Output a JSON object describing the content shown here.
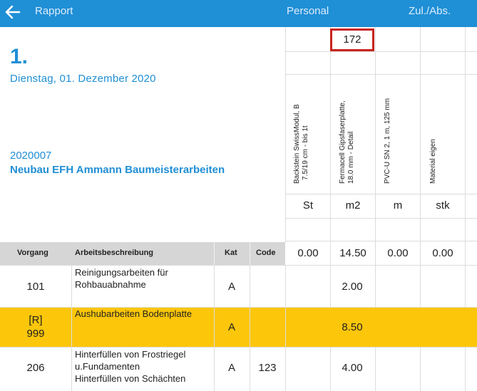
{
  "topbar": {
    "back_icon": "arrow-left-icon",
    "rapport": "Rapport",
    "personal": "Personal",
    "zul_abs": "Zul./Abs."
  },
  "header": {
    "day": "1.",
    "date": "Dienstag, 01. Dezember 2020",
    "project_number": "2020007",
    "project_name": "Neubau EFH Ammann Baumeisterarbeiten"
  },
  "materials": [
    {
      "name_line1": "Backstein SwissModul, B",
      "name_line2": "7.5/19 cm - bis 1t",
      "unit": "St",
      "total": "0.00",
      "top_value": ""
    },
    {
      "name_line1": "Fermacell Gipsfaserplatte,",
      "name_line2": "18.0 mm - Detail",
      "unit": "m2",
      "total": "14.50",
      "top_value": "172"
    },
    {
      "name_line1": "PVC-U SN 2, 1 m, 125 mm",
      "name_line2": "",
      "unit": "m",
      "total": "0.00",
      "top_value": ""
    },
    {
      "name_line1": "Material eigen",
      "name_line2": "",
      "unit": "stk",
      "total": "0.00",
      "top_value": ""
    }
  ],
  "table_header": {
    "vorgang": "Vorgang",
    "arbeitsbeschreibung": "Arbeitsbeschreibung",
    "kat": "Kat",
    "code": "Code"
  },
  "rows": [
    {
      "vorgang_line1": "",
      "vorgang_line2": "101",
      "description": "Reinigungsarbeiten für\nRohbauabnahme",
      "kat": "A",
      "code": "",
      "value": "2.00",
      "highlighted": false
    },
    {
      "vorgang_line1": "[R]",
      "vorgang_line2": "999",
      "description": "Aushubarbeiten Bodenplatte",
      "kat": "A",
      "code": "",
      "value": "8.50",
      "highlighted": true
    },
    {
      "vorgang_line1": "",
      "vorgang_line2": "206",
      "description": "Hinterfüllen von Frostriegel\nu.Fundamenten\nHinterfüllen von Schächten",
      "kat": "A",
      "code": "123",
      "value": "4.00",
      "highlighted": false
    }
  ],
  "colors": {
    "accent": "#1f8fd6",
    "highlight_row": "#fcc60a",
    "selection_border": "#c8231d"
  }
}
